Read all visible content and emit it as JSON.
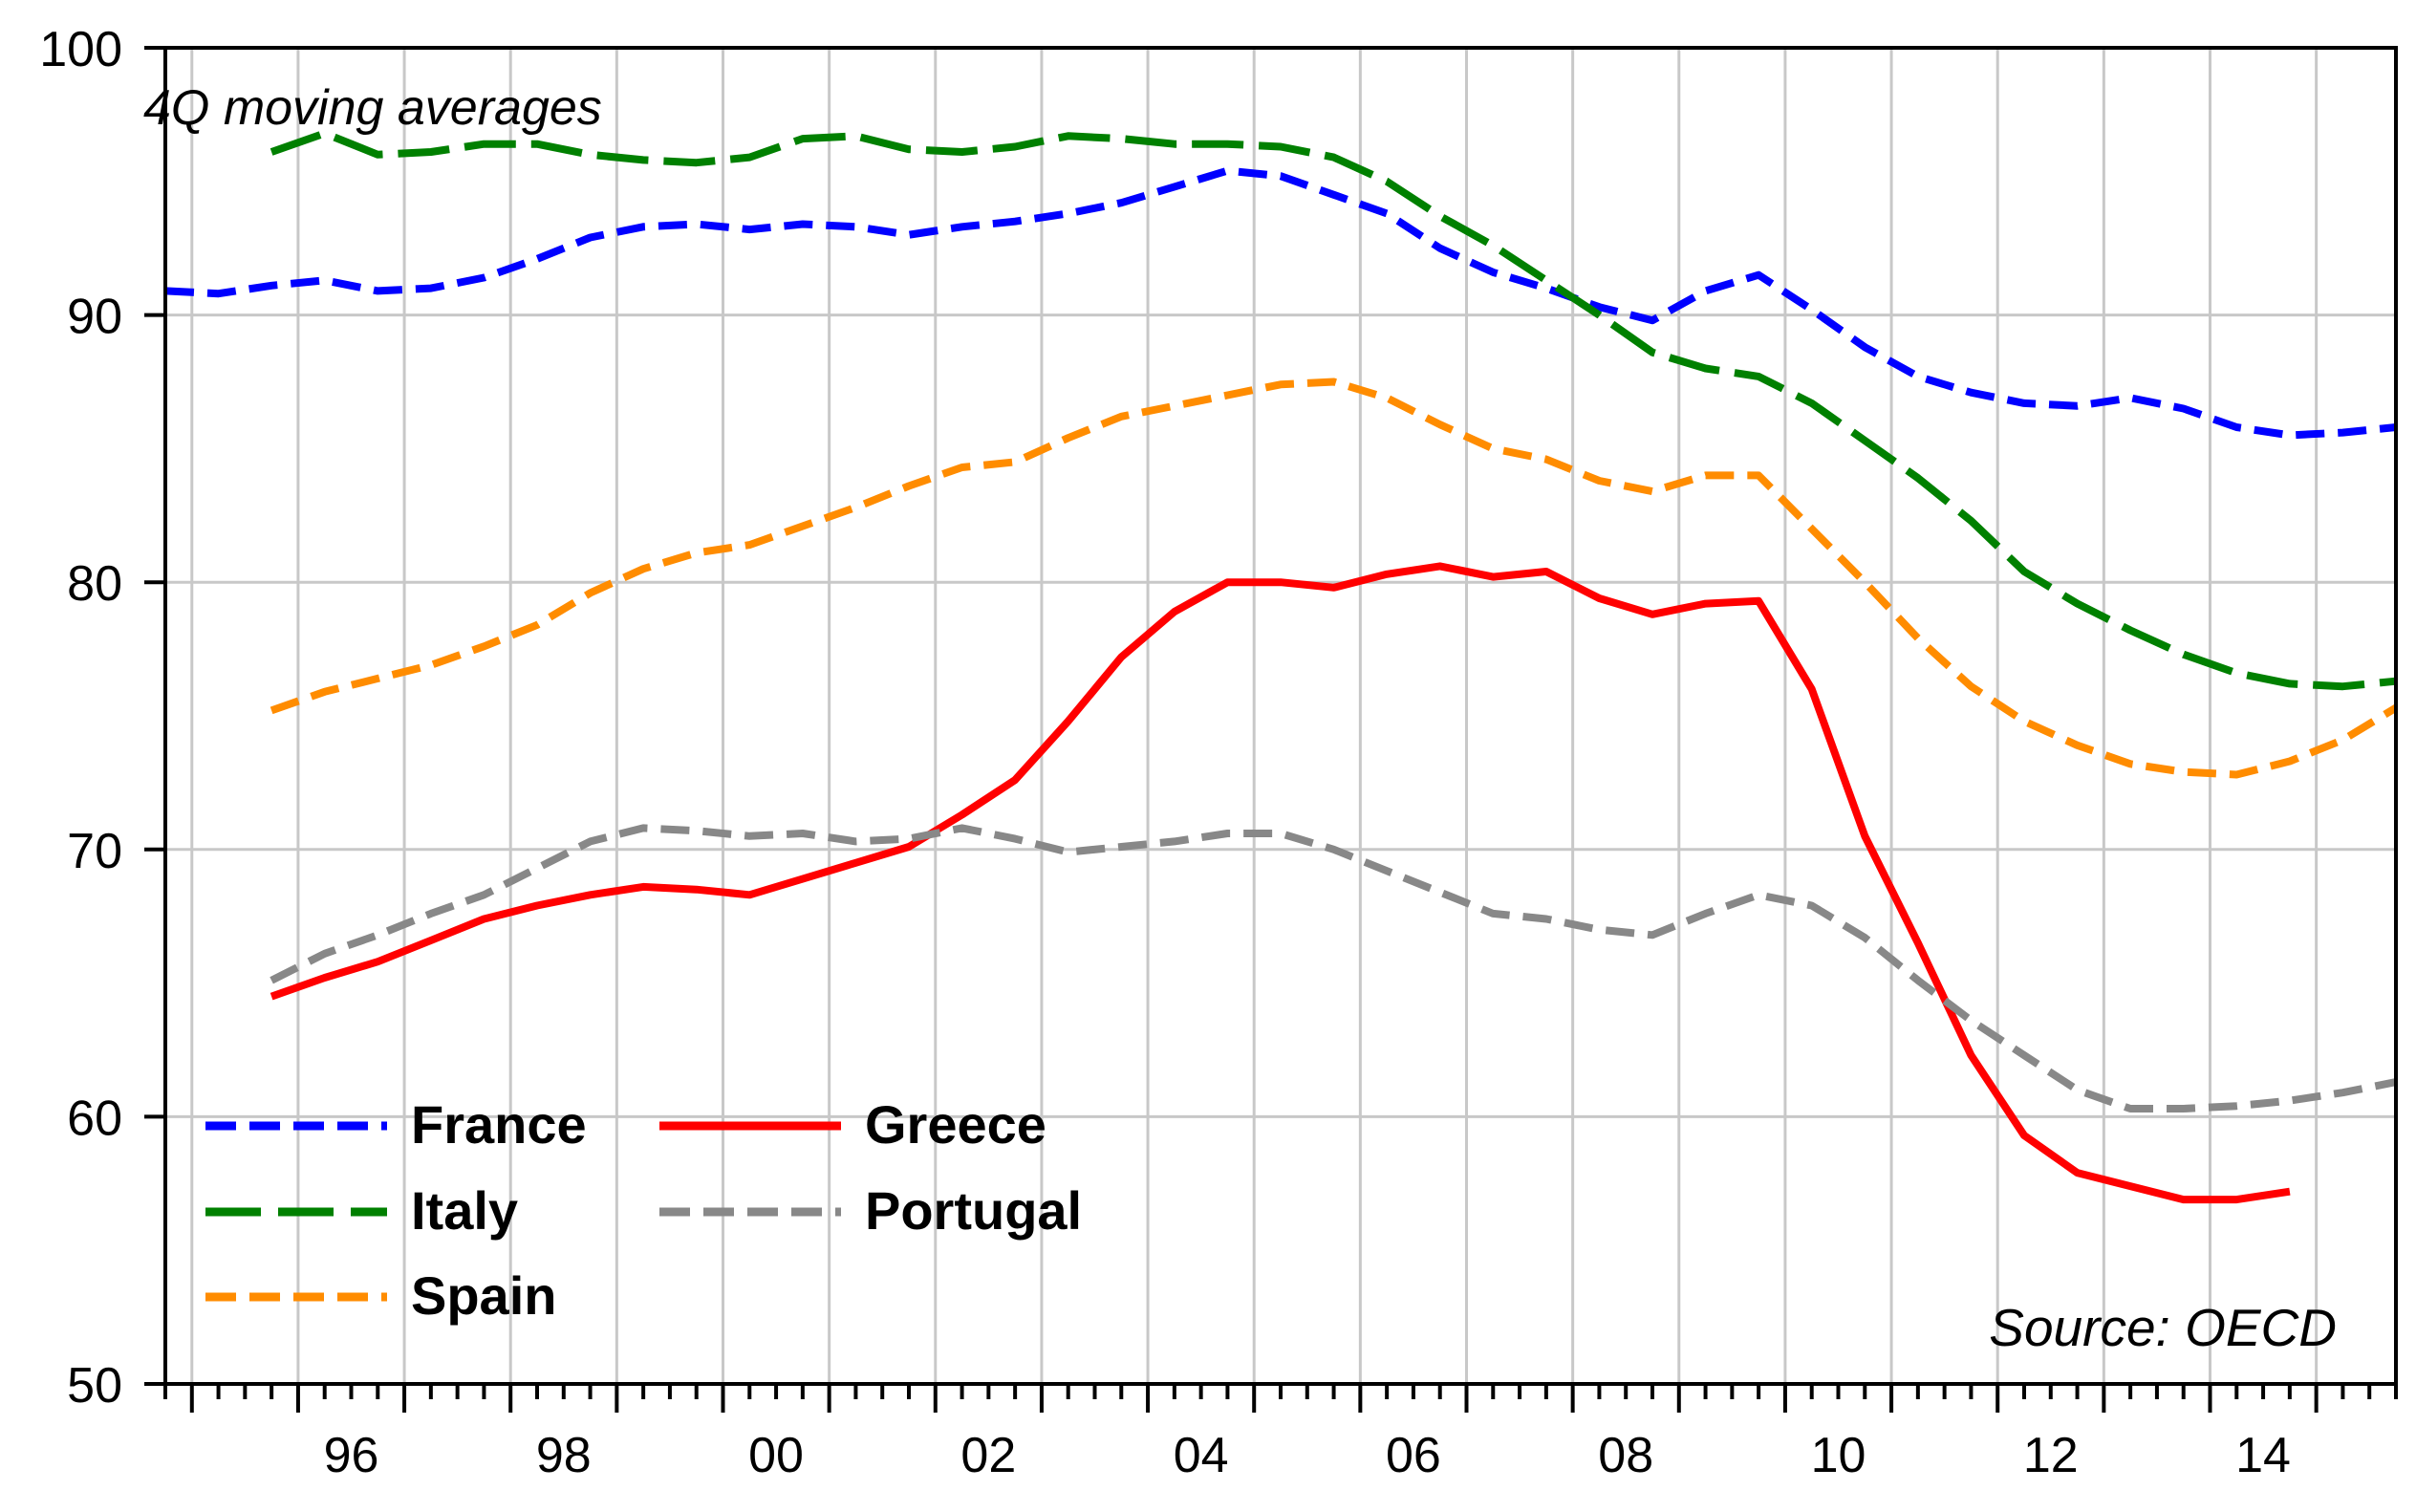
{
  "chart_data": {
    "type": "line",
    "annotation": "4Q moving averages",
    "source": "Source: OECD",
    "x_range": [
      1994.75,
      2015.75
    ],
    "ylim": [
      50,
      100
    ],
    "y_ticks": [
      "50",
      "60",
      "70",
      "80",
      "90",
      "100"
    ],
    "y_tick_values": [
      50,
      60,
      70,
      80,
      90,
      100
    ],
    "x_tick_labels": [
      "96",
      "98",
      "00",
      "02",
      "04",
      "06",
      "08",
      "10",
      "12",
      "14"
    ],
    "x_tick_values": [
      1996,
      1998,
      2000,
      2002,
      2004,
      2006,
      2008,
      2010,
      2012,
      2014
    ],
    "grid": true,
    "legend": {
      "placement": "bottom-left",
      "columns": 2
    },
    "series": [
      {
        "name": "France",
        "color": "#0000ff",
        "style": "dashed",
        "points": [
          [
            1994.75,
            90.9
          ],
          [
            1995.25,
            90.8
          ],
          [
            1995.75,
            91.1
          ],
          [
            1996.25,
            91.3
          ],
          [
            1996.75,
            90.9
          ],
          [
            1997.25,
            91.0
          ],
          [
            1997.75,
            91.4
          ],
          [
            1998.25,
            92.1
          ],
          [
            1998.75,
            92.9
          ],
          [
            1999.25,
            93.3
          ],
          [
            1999.75,
            93.4
          ],
          [
            2000.25,
            93.2
          ],
          [
            2000.75,
            93.4
          ],
          [
            2001.25,
            93.3
          ],
          [
            2001.75,
            93.0
          ],
          [
            2002.25,
            93.3
          ],
          [
            2002.75,
            93.5
          ],
          [
            2003.25,
            93.8
          ],
          [
            2003.75,
            94.2
          ],
          [
            2004.25,
            94.8
          ],
          [
            2004.75,
            95.4
          ],
          [
            2005.25,
            95.2
          ],
          [
            2005.75,
            94.5
          ],
          [
            2006.25,
            93.8
          ],
          [
            2006.75,
            92.5
          ],
          [
            2007.25,
            91.6
          ],
          [
            2007.75,
            91.0
          ],
          [
            2008.25,
            90.3
          ],
          [
            2008.75,
            89.8
          ],
          [
            2009.25,
            90.9
          ],
          [
            2009.75,
            91.5
          ],
          [
            2010.25,
            90.2
          ],
          [
            2010.75,
            88.8
          ],
          [
            2011.25,
            87.7
          ],
          [
            2011.75,
            87.1
          ],
          [
            2012.25,
            86.7
          ],
          [
            2012.75,
            86.6
          ],
          [
            2013.25,
            86.9
          ],
          [
            2013.75,
            86.5
          ],
          [
            2014.25,
            85.8
          ],
          [
            2014.75,
            85.5
          ],
          [
            2015.25,
            85.6
          ],
          [
            2015.75,
            85.8
          ]
        ]
      },
      {
        "name": "Italy",
        "color": "#008000",
        "style": "longdash",
        "points": [
          [
            1995.75,
            96.1
          ],
          [
            1996.25,
            96.8
          ],
          [
            1996.75,
            96.0
          ],
          [
            1997.25,
            96.1
          ],
          [
            1997.75,
            96.4
          ],
          [
            1998.25,
            96.4
          ],
          [
            1998.75,
            96.0
          ],
          [
            1999.25,
            95.8
          ],
          [
            1999.75,
            95.7
          ],
          [
            2000.25,
            95.9
          ],
          [
            2000.75,
            96.6
          ],
          [
            2001.25,
            96.7
          ],
          [
            2001.75,
            96.2
          ],
          [
            2002.25,
            96.1
          ],
          [
            2002.75,
            96.3
          ],
          [
            2003.25,
            96.7
          ],
          [
            2003.75,
            96.6
          ],
          [
            2004.25,
            96.4
          ],
          [
            2004.75,
            96.4
          ],
          [
            2005.25,
            96.3
          ],
          [
            2005.75,
            95.9
          ],
          [
            2006.25,
            95.0
          ],
          [
            2006.75,
            93.7
          ],
          [
            2007.25,
            92.6
          ],
          [
            2007.75,
            91.3
          ],
          [
            2008.25,
            90.0
          ],
          [
            2008.75,
            88.6
          ],
          [
            2009.25,
            88.0
          ],
          [
            2009.75,
            87.7
          ],
          [
            2010.25,
            86.7
          ],
          [
            2010.75,
            85.3
          ],
          [
            2011.25,
            83.9
          ],
          [
            2011.75,
            82.3
          ],
          [
            2012.25,
            80.4
          ],
          [
            2012.75,
            79.2
          ],
          [
            2013.25,
            78.2
          ],
          [
            2013.75,
            77.3
          ],
          [
            2014.25,
            76.6
          ],
          [
            2014.75,
            76.2
          ],
          [
            2015.25,
            76.1
          ],
          [
            2015.75,
            76.3
          ]
        ]
      },
      {
        "name": "Spain",
        "color": "#ff8c00",
        "style": "dashed",
        "points": [
          [
            1995.75,
            75.2
          ],
          [
            1996.25,
            75.9
          ],
          [
            1996.75,
            76.4
          ],
          [
            1997.25,
            76.9
          ],
          [
            1997.75,
            77.6
          ],
          [
            1998.25,
            78.4
          ],
          [
            1998.75,
            79.6
          ],
          [
            1999.25,
            80.5
          ],
          [
            1999.75,
            81.1
          ],
          [
            2000.25,
            81.4
          ],
          [
            2000.75,
            82.1
          ],
          [
            2001.25,
            82.8
          ],
          [
            2001.75,
            83.6
          ],
          [
            2002.25,
            84.3
          ],
          [
            2002.75,
            84.5
          ],
          [
            2003.25,
            85.4
          ],
          [
            2003.75,
            86.2
          ],
          [
            2004.25,
            86.6
          ],
          [
            2004.75,
            87.0
          ],
          [
            2005.25,
            87.4
          ],
          [
            2005.75,
            87.5
          ],
          [
            2006.25,
            86.9
          ],
          [
            2006.75,
            85.9
          ],
          [
            2007.25,
            85.0
          ],
          [
            2007.75,
            84.6
          ],
          [
            2008.25,
            83.8
          ],
          [
            2008.75,
            83.4
          ],
          [
            2009.25,
            84.0
          ],
          [
            2009.75,
            84.0
          ],
          [
            2010.25,
            82.0
          ],
          [
            2010.75,
            80.0
          ],
          [
            2011.25,
            77.9
          ],
          [
            2011.75,
            76.1
          ],
          [
            2012.25,
            74.8
          ],
          [
            2012.75,
            73.9
          ],
          [
            2013.25,
            73.2
          ],
          [
            2013.75,
            72.9
          ],
          [
            2014.25,
            72.8
          ],
          [
            2014.75,
            73.3
          ],
          [
            2015.25,
            74.1
          ],
          [
            2015.75,
            75.3
          ]
        ]
      },
      {
        "name": "Greece",
        "color": "#ff0000",
        "style": "solid",
        "points": [
          [
            1995.75,
            64.5
          ],
          [
            1996.25,
            65.2
          ],
          [
            1996.75,
            65.8
          ],
          [
            1997.25,
            66.6
          ],
          [
            1997.75,
            67.4
          ],
          [
            1998.25,
            67.9
          ],
          [
            1998.75,
            68.3
          ],
          [
            1999.25,
            68.6
          ],
          [
            1999.75,
            68.5
          ],
          [
            2000.25,
            68.3
          ],
          [
            2000.75,
            68.9
          ],
          [
            2001.25,
            69.5
          ],
          [
            2001.75,
            70.1
          ],
          [
            2002.25,
            71.3
          ],
          [
            2002.75,
            72.6
          ],
          [
            2003.25,
            74.8
          ],
          [
            2003.75,
            77.2
          ],
          [
            2004.25,
            78.9
          ],
          [
            2004.75,
            80.0
          ],
          [
            2005.25,
            80.0
          ],
          [
            2005.75,
            79.8
          ],
          [
            2006.25,
            80.3
          ],
          [
            2006.75,
            80.6
          ],
          [
            2007.25,
            80.2
          ],
          [
            2007.75,
            80.4
          ],
          [
            2008.25,
            79.4
          ],
          [
            2008.75,
            78.8
          ],
          [
            2009.25,
            79.2
          ],
          [
            2009.75,
            79.3
          ],
          [
            2010.25,
            76.0
          ],
          [
            2010.75,
            70.5
          ],
          [
            2011.25,
            66.5
          ],
          [
            2011.75,
            62.3
          ],
          [
            2012.25,
            59.3
          ],
          [
            2012.75,
            57.9
          ],
          [
            2013.25,
            57.4
          ],
          [
            2013.75,
            56.9
          ],
          [
            2014.25,
            56.9
          ],
          [
            2014.75,
            57.2
          ]
        ]
      },
      {
        "name": "Portugal",
        "color": "#888888",
        "style": "dashed",
        "points": [
          [
            1995.75,
            65.1
          ],
          [
            1996.25,
            66.1
          ],
          [
            1996.75,
            66.8
          ],
          [
            1997.25,
            67.6
          ],
          [
            1997.75,
            68.3
          ],
          [
            1998.25,
            69.3
          ],
          [
            1998.75,
            70.3
          ],
          [
            1999.25,
            70.8
          ],
          [
            1999.75,
            70.7
          ],
          [
            2000.25,
            70.5
          ],
          [
            2000.75,
            70.6
          ],
          [
            2001.25,
            70.3
          ],
          [
            2001.75,
            70.4
          ],
          [
            2002.25,
            70.8
          ],
          [
            2002.75,
            70.4
          ],
          [
            2003.25,
            69.9
          ],
          [
            2003.75,
            70.1
          ],
          [
            2004.25,
            70.3
          ],
          [
            2004.75,
            70.6
          ],
          [
            2005.25,
            70.6
          ],
          [
            2005.75,
            70.0
          ],
          [
            2006.25,
            69.2
          ],
          [
            2006.75,
            68.4
          ],
          [
            2007.25,
            67.6
          ],
          [
            2007.75,
            67.4
          ],
          [
            2008.25,
            67.0
          ],
          [
            2008.75,
            66.8
          ],
          [
            2009.25,
            67.6
          ],
          [
            2009.75,
            68.3
          ],
          [
            2010.25,
            67.9
          ],
          [
            2010.75,
            66.7
          ],
          [
            2011.25,
            65.1
          ],
          [
            2011.75,
            63.6
          ],
          [
            2012.25,
            62.3
          ],
          [
            2012.75,
            61.0
          ],
          [
            2013.25,
            60.3
          ],
          [
            2013.75,
            60.3
          ],
          [
            2014.25,
            60.4
          ],
          [
            2014.75,
            60.6
          ],
          [
            2015.25,
            60.9
          ],
          [
            2015.75,
            61.3
          ]
        ]
      }
    ]
  }
}
